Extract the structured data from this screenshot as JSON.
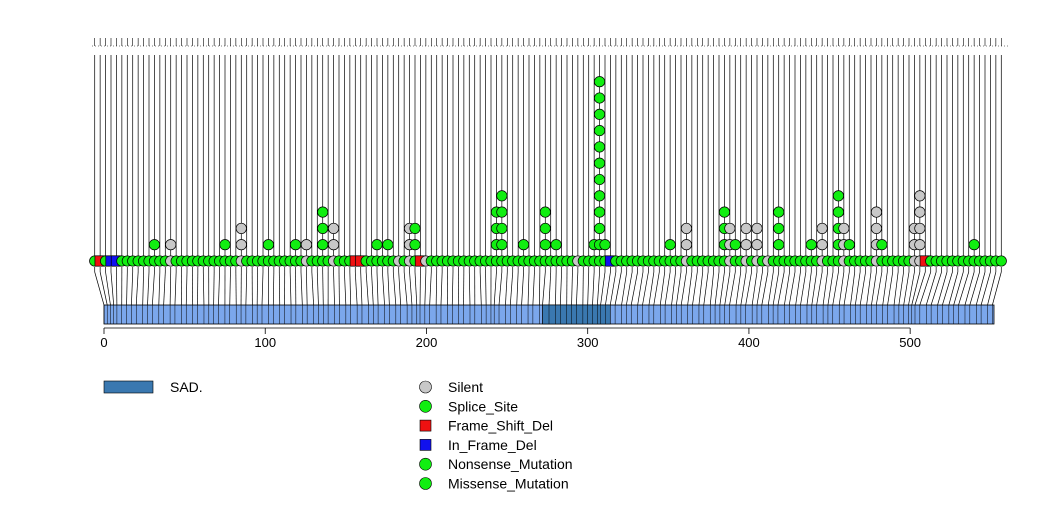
{
  "chart_data": {
    "type": "lollipop",
    "title": "",
    "xlabel": "",
    "ylabel": "",
    "protein_length": 552,
    "xlim": [
      0,
      552
    ],
    "x_ticks": [
      0,
      100,
      200,
      300,
      400,
      500
    ],
    "domains": [
      {
        "name": "SAD.",
        "start": 272,
        "end": 314,
        "color": "#3a78b0"
      }
    ],
    "protein_color": "#7ba7ec",
    "legend": [
      {
        "label": "Silent",
        "shape": "circle",
        "color": "#c8c8c8"
      },
      {
        "label": "Splice_Site",
        "shape": "circle",
        "color": "#11ee11"
      },
      {
        "label": "Frame_Shift_Del",
        "shape": "square",
        "color": "#ee1111"
      },
      {
        "label": "In_Frame_Del",
        "shape": "square",
        "color": "#1111ee"
      },
      {
        "label": "Nonsense_Mutation",
        "shape": "circle",
        "color": "#11ee11"
      },
      {
        "label": "Missense_Mutation",
        "shape": "circle",
        "color": "#11ee11"
      }
    ],
    "mutations": [
      {
        "pos": 0,
        "count": 1,
        "type": "Missense_Mutation"
      },
      {
        "pos": 2,
        "count": 1,
        "type": "Frame_Shift_Del"
      },
      {
        "pos": 4,
        "count": 1,
        "type": "Missense_Mutation"
      },
      {
        "pos": 6,
        "count": 1,
        "type": "In_Frame_Del"
      },
      {
        "pos": 8,
        "count": 1,
        "type": "In_Frame_Del"
      },
      {
        "pos": 11,
        "count": 1,
        "type": "Missense_Mutation"
      },
      {
        "pos": 14,
        "count": 1,
        "type": "Missense_Mutation"
      },
      {
        "pos": 17,
        "count": 1,
        "type": "Missense_Mutation"
      },
      {
        "pos": 20,
        "count": 1,
        "type": "Missense_Mutation"
      },
      {
        "pos": 24,
        "count": 1,
        "type": "Missense_Mutation"
      },
      {
        "pos": 27,
        "count": 1,
        "type": "Missense_Mutation"
      },
      {
        "pos": 30,
        "count": 2,
        "type": "Missense_Mutation"
      },
      {
        "pos": 34,
        "count": 1,
        "type": "Missense_Mutation"
      },
      {
        "pos": 37,
        "count": 1,
        "type": "Missense_Mutation"
      },
      {
        "pos": 41,
        "count": 2,
        "type": "Silent"
      },
      {
        "pos": 44,
        "count": 1,
        "type": "Missense_Mutation"
      },
      {
        "pos": 48,
        "count": 1,
        "type": "Missense_Mutation"
      },
      {
        "pos": 51,
        "count": 1,
        "type": "Missense_Mutation"
      },
      {
        "pos": 55,
        "count": 1,
        "type": "Missense_Mutation"
      },
      {
        "pos": 58,
        "count": 1,
        "type": "Missense_Mutation"
      },
      {
        "pos": 62,
        "count": 1,
        "type": "Missense_Mutation"
      },
      {
        "pos": 65,
        "count": 1,
        "type": "Missense_Mutation"
      },
      {
        "pos": 68,
        "count": 1,
        "type": "Missense_Mutation"
      },
      {
        "pos": 71,
        "count": 1,
        "type": "Missense_Mutation"
      },
      {
        "pos": 75,
        "count": 2,
        "type": "Missense_Mutation"
      },
      {
        "pos": 78,
        "count": 1,
        "type": "Missense_Mutation"
      },
      {
        "pos": 82,
        "count": 1,
        "type": "Missense_Mutation"
      },
      {
        "pos": 85,
        "count": 3,
        "type": "Silent"
      },
      {
        "pos": 88,
        "count": 1,
        "type": "Missense_Mutation"
      },
      {
        "pos": 92,
        "count": 1,
        "type": "Missense_Mutation"
      },
      {
        "pos": 95,
        "count": 1,
        "type": "Missense_Mutation"
      },
      {
        "pos": 98,
        "count": 1,
        "type": "Missense_Mutation"
      },
      {
        "pos": 102,
        "count": 2,
        "type": "Missense_Mutation"
      },
      {
        "pos": 105,
        "count": 1,
        "type": "Missense_Mutation"
      },
      {
        "pos": 109,
        "count": 1,
        "type": "Missense_Mutation"
      },
      {
        "pos": 112,
        "count": 1,
        "type": "Missense_Mutation"
      },
      {
        "pos": 116,
        "count": 1,
        "type": "Missense_Mutation"
      },
      {
        "pos": 119,
        "count": 2,
        "type": "Missense_Mutation"
      },
      {
        "pos": 123,
        "count": 1,
        "type": "Missense_Mutation"
      },
      {
        "pos": 126,
        "count": 2,
        "type": "Silent"
      },
      {
        "pos": 130,
        "count": 1,
        "type": "Missense_Mutation"
      },
      {
        "pos": 133,
        "count": 1,
        "type": "Missense_Mutation"
      },
      {
        "pos": 136,
        "count": 4,
        "type": "Missense_Mutation"
      },
      {
        "pos": 139,
        "count": 1,
        "type": "Missense_Mutation"
      },
      {
        "pos": 143,
        "count": 3,
        "type": "Silent"
      },
      {
        "pos": 146,
        "count": 1,
        "type": "Missense_Mutation"
      },
      {
        "pos": 150,
        "count": 1,
        "type": "Missense_Mutation"
      },
      {
        "pos": 153,
        "count": 1,
        "type": "Missense_Mutation"
      },
      {
        "pos": 157,
        "count": 1,
        "type": "Frame_Shift_Del"
      },
      {
        "pos": 160,
        "count": 1,
        "type": "Frame_Shift_Del"
      },
      {
        "pos": 164,
        "count": 1,
        "type": "Missense_Mutation"
      },
      {
        "pos": 167,
        "count": 1,
        "type": "Missense_Mutation"
      },
      {
        "pos": 170,
        "count": 2,
        "type": "Missense_Mutation"
      },
      {
        "pos": 174,
        "count": 1,
        "type": "Missense_Mutation"
      },
      {
        "pos": 177,
        "count": 2,
        "type": "Missense_Mutation"
      },
      {
        "pos": 181,
        "count": 1,
        "type": "Missense_Mutation"
      },
      {
        "pos": 184,
        "count": 1,
        "type": "Silent"
      },
      {
        "pos": 188,
        "count": 1,
        "type": "Missense_Mutation"
      },
      {
        "pos": 191,
        "count": 3,
        "type": "Silent"
      },
      {
        "pos": 194,
        "count": 3,
        "type": "Missense_Mutation"
      },
      {
        "pos": 196,
        "count": 1,
        "type": "Frame_Shift_Del"
      },
      {
        "pos": 199,
        "count": 1,
        "type": "Silent"
      },
      {
        "pos": 202,
        "count": 1,
        "type": "Missense_Mutation"
      },
      {
        "pos": 206,
        "count": 1,
        "type": "Missense_Mutation"
      },
      {
        "pos": 209,
        "count": 1,
        "type": "Missense_Mutation"
      },
      {
        "pos": 213,
        "count": 1,
        "type": "Missense_Mutation"
      },
      {
        "pos": 216,
        "count": 1,
        "type": "Missense_Mutation"
      },
      {
        "pos": 220,
        "count": 1,
        "type": "Missense_Mutation"
      },
      {
        "pos": 223,
        "count": 1,
        "type": "Missense_Mutation"
      },
      {
        "pos": 227,
        "count": 1,
        "type": "Missense_Mutation"
      },
      {
        "pos": 230,
        "count": 1,
        "type": "Missense_Mutation"
      },
      {
        "pos": 234,
        "count": 1,
        "type": "Missense_Mutation"
      },
      {
        "pos": 237,
        "count": 1,
        "type": "Missense_Mutation"
      },
      {
        "pos": 240,
        "count": 1,
        "type": "Missense_Mutation"
      },
      {
        "pos": 242,
        "count": 4,
        "type": "Missense_Mutation"
      },
      {
        "pos": 245,
        "count": 5,
        "type": "Missense_Mutation"
      },
      {
        "pos": 249,
        "count": 1,
        "type": "Missense_Mutation"
      },
      {
        "pos": 252,
        "count": 1,
        "type": "Missense_Mutation"
      },
      {
        "pos": 256,
        "count": 1,
        "type": "Missense_Mutation"
      },
      {
        "pos": 259,
        "count": 2,
        "type": "Missense_Mutation"
      },
      {
        "pos": 263,
        "count": 1,
        "type": "Missense_Mutation"
      },
      {
        "pos": 266,
        "count": 1,
        "type": "Missense_Mutation"
      },
      {
        "pos": 270,
        "count": 1,
        "type": "Missense_Mutation"
      },
      {
        "pos": 272,
        "count": 4,
        "type": "Missense_Mutation"
      },
      {
        "pos": 276,
        "count": 1,
        "type": "Missense_Mutation"
      },
      {
        "pos": 280,
        "count": 2,
        "type": "Missense_Mutation"
      },
      {
        "pos": 283,
        "count": 1,
        "type": "Missense_Mutation"
      },
      {
        "pos": 287,
        "count": 1,
        "type": "Missense_Mutation"
      },
      {
        "pos": 290,
        "count": 1,
        "type": "Missense_Mutation"
      },
      {
        "pos": 293,
        "count": 1,
        "type": "Silent"
      },
      {
        "pos": 297,
        "count": 1,
        "type": "Missense_Mutation"
      },
      {
        "pos": 300,
        "count": 1,
        "type": "Missense_Mutation"
      },
      {
        "pos": 303,
        "count": 2,
        "type": "Missense_Mutation"
      },
      {
        "pos": 306,
        "count": 12,
        "type": "Missense_Mutation"
      },
      {
        "pos": 308,
        "count": 2,
        "type": "Missense_Mutation"
      },
      {
        "pos": 311,
        "count": 1,
        "type": "In_Frame_Del"
      },
      {
        "pos": 314,
        "count": 1,
        "type": "Missense_Mutation"
      },
      {
        "pos": 317,
        "count": 1,
        "type": "Missense_Mutation"
      },
      {
        "pos": 321,
        "count": 1,
        "type": "Missense_Mutation"
      },
      {
        "pos": 324,
        "count": 1,
        "type": "Missense_Mutation"
      },
      {
        "pos": 327,
        "count": 1,
        "type": "Missense_Mutation"
      },
      {
        "pos": 331,
        "count": 1,
        "type": "Missense_Mutation"
      },
      {
        "pos": 334,
        "count": 1,
        "type": "Missense_Mutation"
      },
      {
        "pos": 338,
        "count": 1,
        "type": "Missense_Mutation"
      },
      {
        "pos": 341,
        "count": 1,
        "type": "Missense_Mutation"
      },
      {
        "pos": 345,
        "count": 1,
        "type": "Missense_Mutation"
      },
      {
        "pos": 348,
        "count": 2,
        "type": "Missense_Mutation"
      },
      {
        "pos": 352,
        "count": 1,
        "type": "Missense_Mutation"
      },
      {
        "pos": 355,
        "count": 1,
        "type": "Missense_Mutation"
      },
      {
        "pos": 358,
        "count": 3,
        "type": "Silent"
      },
      {
        "pos": 362,
        "count": 1,
        "type": "Missense_Mutation"
      },
      {
        "pos": 365,
        "count": 1,
        "type": "Missense_Mutation"
      },
      {
        "pos": 369,
        "count": 1,
        "type": "Missense_Mutation"
      },
      {
        "pos": 372,
        "count": 1,
        "type": "Missense_Mutation"
      },
      {
        "pos": 376,
        "count": 1,
        "type": "Missense_Mutation"
      },
      {
        "pos": 379,
        "count": 1,
        "type": "Missense_Mutation"
      },
      {
        "pos": 382,
        "count": 4,
        "type": "Missense_Mutation"
      },
      {
        "pos": 385,
        "count": 3,
        "type": "Silent"
      },
      {
        "pos": 388,
        "count": 2,
        "type": "Missense_Mutation"
      },
      {
        "pos": 392,
        "count": 1,
        "type": "Missense_Mutation"
      },
      {
        "pos": 395,
        "count": 3,
        "type": "Silent"
      },
      {
        "pos": 398,
        "count": 1,
        "type": "Missense_Mutation"
      },
      {
        "pos": 402,
        "count": 3,
        "type": "Silent"
      },
      {
        "pos": 405,
        "count": 1,
        "type": "Missense_Mutation"
      },
      {
        "pos": 408,
        "count": 1,
        "type": "Silent"
      },
      {
        "pos": 412,
        "count": 1,
        "type": "Missense_Mutation"
      },
      {
        "pos": 415,
        "count": 4,
        "type": "Missense_Mutation"
      },
      {
        "pos": 418,
        "count": 1,
        "type": "Missense_Mutation"
      },
      {
        "pos": 422,
        "count": 1,
        "type": "Missense_Mutation"
      },
      {
        "pos": 425,
        "count": 1,
        "type": "Missense_Mutation"
      },
      {
        "pos": 429,
        "count": 1,
        "type": "Missense_Mutation"
      },
      {
        "pos": 432,
        "count": 1,
        "type": "Missense_Mutation"
      },
      {
        "pos": 436,
        "count": 2,
        "type": "Missense_Mutation"
      },
      {
        "pos": 439,
        "count": 1,
        "type": "Missense_Mutation"
      },
      {
        "pos": 442,
        "count": 3,
        "type": "Silent"
      },
      {
        "pos": 446,
        "count": 1,
        "type": "Missense_Mutation"
      },
      {
        "pos": 449,
        "count": 1,
        "type": "Missense_Mutation"
      },
      {
        "pos": 452,
        "count": 5,
        "type": "Missense_Mutation"
      },
      {
        "pos": 456,
        "count": 3,
        "type": "Silent"
      },
      {
        "pos": 459,
        "count": 2,
        "type": "Missense_Mutation"
      },
      {
        "pos": 463,
        "count": 1,
        "type": "Missense_Mutation"
      },
      {
        "pos": 466,
        "count": 1,
        "type": "Missense_Mutation"
      },
      {
        "pos": 469,
        "count": 1,
        "type": "Missense_Mutation"
      },
      {
        "pos": 473,
        "count": 1,
        "type": "Missense_Mutation"
      },
      {
        "pos": 476,
        "count": 4,
        "type": "Silent"
      },
      {
        "pos": 479,
        "count": 2,
        "type": "Missense_Mutation"
      },
      {
        "pos": 483,
        "count": 1,
        "type": "Missense_Mutation"
      },
      {
        "pos": 486,
        "count": 1,
        "type": "Missense_Mutation"
      },
      {
        "pos": 490,
        "count": 1,
        "type": "Missense_Mutation"
      },
      {
        "pos": 493,
        "count": 1,
        "type": "Missense_Mutation"
      },
      {
        "pos": 496,
        "count": 1,
        "type": "Missense_Mutation"
      },
      {
        "pos": 499,
        "count": 3,
        "type": "Silent"
      },
      {
        "pos": 501,
        "count": 5,
        "type": "Silent"
      },
      {
        "pos": 503,
        "count": 1,
        "type": "Frame_Shift_Del"
      },
      {
        "pos": 506,
        "count": 1,
        "type": "Missense_Mutation"
      },
      {
        "pos": 510,
        "count": 1,
        "type": "Missense_Mutation"
      },
      {
        "pos": 513,
        "count": 1,
        "type": "Missense_Mutation"
      },
      {
        "pos": 517,
        "count": 1,
        "type": "Missense_Mutation"
      },
      {
        "pos": 520,
        "count": 1,
        "type": "Missense_Mutation"
      },
      {
        "pos": 524,
        "count": 1,
        "type": "Missense_Mutation"
      },
      {
        "pos": 527,
        "count": 1,
        "type": "Missense_Mutation"
      },
      {
        "pos": 530,
        "count": 1,
        "type": "Missense_Mutation"
      },
      {
        "pos": 534,
        "count": 2,
        "type": "Missense_Mutation"
      },
      {
        "pos": 537,
        "count": 1,
        "type": "Missense_Mutation"
      },
      {
        "pos": 541,
        "count": 1,
        "type": "Missense_Mutation"
      },
      {
        "pos": 544,
        "count": 1,
        "type": "Missense_Mutation"
      },
      {
        "pos": 548,
        "count": 1,
        "type": "Missense_Mutation"
      },
      {
        "pos": 551,
        "count": 1,
        "type": "Missense_Mutation"
      }
    ]
  }
}
